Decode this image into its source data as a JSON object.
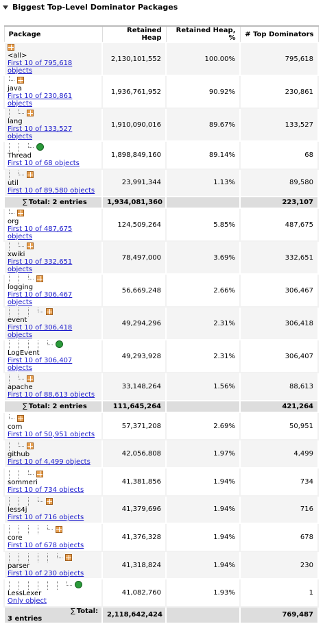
{
  "header": {
    "title": "Biggest Top-Level Dominator Packages"
  },
  "table": {
    "columns": [
      "Package",
      "Retained Heap",
      "Retained Heap, %",
      "# Top Dominators"
    ],
    "rows": [
      {
        "name": "<all>",
        "link": "First 10 of 795,618 objects",
        "retained": "2,130,101,552",
        "percent": "100.00%",
        "dominators": "795,618"
      },
      {
        "name": "java",
        "link": "First 10 of 230,861 objects",
        "retained": "1,936,761,952",
        "percent": "90.92%",
        "dominators": "230,861"
      },
      {
        "name": "lang",
        "link": "First 10 of 133,527 objects",
        "retained": "1,910,090,016",
        "percent": "89.67%",
        "dominators": "133,527"
      },
      {
        "name": "Thread",
        "link": "First 10 of 68 objects",
        "retained": "1,898,849,160",
        "percent": "89.14%",
        "dominators": "68"
      },
      {
        "name": "util",
        "link": "First 10 of 89,580 objects",
        "retained": "23,991,344",
        "percent": "1.13%",
        "dominators": "89,580"
      },
      {
        "total": "Total: 2 entries",
        "retained": "1,934,081,360",
        "dominators": "223,107"
      },
      {
        "name": "org",
        "link": "First 10 of 487,675 objects",
        "retained": "124,509,264",
        "percent": "5.85%",
        "dominators": "487,675"
      },
      {
        "name": "xwiki",
        "link": "First 10 of 332,651 objects",
        "retained": "78,497,000",
        "percent": "3.69%",
        "dominators": "332,651"
      },
      {
        "name": "logging",
        "link": "First 10 of 306,467 objects",
        "retained": "56,669,248",
        "percent": "2.66%",
        "dominators": "306,467"
      },
      {
        "name": "event",
        "link": "First 10 of 306,418 objects",
        "retained": "49,294,296",
        "percent": "2.31%",
        "dominators": "306,418"
      },
      {
        "name": "LogEvent",
        "link": "First 10 of 306,407 objects",
        "retained": "49,293,928",
        "percent": "2.31%",
        "dominators": "306,407"
      },
      {
        "name": "apache",
        "link": "First 10 of 88,613 objects",
        "retained": "33,148,264",
        "percent": "1.56%",
        "dominators": "88,613"
      },
      {
        "total": "Total: 2 entries",
        "retained": "111,645,264",
        "dominators": "421,264"
      },
      {
        "name": "com",
        "link": "First 10 of 50,951 objects",
        "retained": "57,371,208",
        "percent": "2.69%",
        "dominators": "50,951"
      },
      {
        "name": "github",
        "link": "First 10 of 4,499 objects",
        "retained": "42,056,808",
        "percent": "1.97%",
        "dominators": "4,499"
      },
      {
        "name": "sommeri",
        "link": "First 10 of 734 objects",
        "retained": "41,381,856",
        "percent": "1.94%",
        "dominators": "734"
      },
      {
        "name": "less4j",
        "link": "First 10 of 716 objects",
        "retained": "41,379,696",
        "percent": "1.94%",
        "dominators": "716"
      },
      {
        "name": "core",
        "link": "First 10 of 678 objects",
        "retained": "41,376,328",
        "percent": "1.94%",
        "dominators": "678"
      },
      {
        "name": "parser",
        "link": "First 10 of 230 objects",
        "retained": "41,318,824",
        "percent": "1.94%",
        "dominators": "230"
      },
      {
        "name": "LessLexer",
        "link": "Only object",
        "retained": "41,082,760",
        "percent": "1.93%",
        "dominators": "1"
      },
      {
        "total": "Total: 3 entries",
        "retained": "2,118,642,424",
        "dominators": "769,487"
      }
    ]
  }
}
